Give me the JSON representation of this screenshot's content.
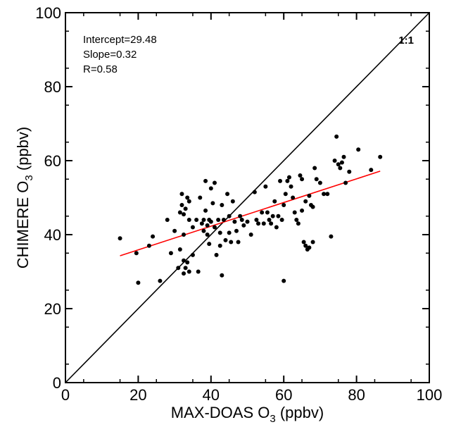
{
  "chart_data": {
    "type": "scatter",
    "xlabel": {
      "main": "MAX-DOAS O",
      "sub": "3",
      "unit": " (ppbv)"
    },
    "ylabel": {
      "main": "CHIMERE O",
      "sub": "3",
      "unit": " (ppbv)"
    },
    "xlim": [
      0,
      100
    ],
    "ylim": [
      0,
      100
    ],
    "xticks": [
      "0",
      "20",
      "40",
      "60",
      "80",
      "100"
    ],
    "yticks": [
      "0",
      "20",
      "40",
      "60",
      "80",
      "100"
    ],
    "grid": false,
    "stats": {
      "intercept": "Intercept=29.48",
      "slope": "Slope=0.32",
      "r": "R=0.58"
    },
    "reference_line": {
      "label": "1:1",
      "x": [
        0,
        100
      ],
      "y": [
        0,
        100
      ],
      "color": "#000000"
    },
    "fit_line": {
      "intercept": 29.48,
      "slope": 0.32,
      "x_range": [
        15,
        86.5
      ],
      "color": "#ff0000"
    },
    "point_color": "#000000",
    "points": [
      [
        15,
        39
      ],
      [
        19.5,
        35
      ],
      [
        20,
        27
      ],
      [
        23,
        37
      ],
      [
        24,
        39.5
      ],
      [
        26,
        27.5
      ],
      [
        28,
        44
      ],
      [
        29,
        35
      ],
      [
        30,
        41
      ],
      [
        31,
        31
      ],
      [
        31.5,
        46
      ],
      [
        31.5,
        36
      ],
      [
        32,
        51
      ],
      [
        32,
        48
      ],
      [
        32.5,
        45.5
      ],
      [
        32.5,
        40
      ],
      [
        32.5,
        33
      ],
      [
        32.5,
        29.5
      ],
      [
        33,
        47
      ],
      [
        33,
        31
      ],
      [
        33.5,
        50
      ],
      [
        33.5,
        32.5
      ],
      [
        34,
        49
      ],
      [
        34,
        44
      ],
      [
        34,
        30
      ],
      [
        35,
        42
      ],
      [
        35,
        34.5
      ],
      [
        36,
        44
      ],
      [
        36.5,
        30
      ],
      [
        37,
        50
      ],
      [
        37.5,
        43
      ],
      [
        38,
        44
      ],
      [
        38,
        41
      ],
      [
        38.5,
        54.5
      ],
      [
        38.5,
        46.5
      ],
      [
        39,
        42.5
      ],
      [
        39,
        40
      ],
      [
        39.5,
        44
      ],
      [
        39.5,
        37.5
      ],
      [
        40,
        52.5
      ],
      [
        40,
        43.5
      ],
      [
        40.5,
        48.5
      ],
      [
        41,
        54
      ],
      [
        41,
        42
      ],
      [
        41.5,
        34.5
      ],
      [
        42,
        44
      ],
      [
        42.5,
        40.5
      ],
      [
        42.5,
        37
      ],
      [
        43,
        48
      ],
      [
        43,
        29
      ],
      [
        43.5,
        44
      ],
      [
        44,
        38.5
      ],
      [
        44.5,
        51
      ],
      [
        45,
        45
      ],
      [
        45,
        40.5
      ],
      [
        45.5,
        38
      ],
      [
        46,
        49
      ],
      [
        46.5,
        43.5
      ],
      [
        47,
        41
      ],
      [
        47.5,
        38
      ],
      [
        48,
        45
      ],
      [
        48.5,
        44
      ],
      [
        49,
        42.5
      ],
      [
        50,
        43.5
      ],
      [
        51,
        40
      ],
      [
        52,
        51.5
      ],
      [
        52.5,
        44
      ],
      [
        53,
        43
      ],
      [
        54,
        46
      ],
      [
        54.5,
        43
      ],
      [
        55,
        53
      ],
      [
        55.5,
        46
      ],
      [
        56,
        44
      ],
      [
        56.5,
        43
      ],
      [
        57,
        45
      ],
      [
        57.5,
        49
      ],
      [
        58,
        42
      ],
      [
        58.5,
        45
      ],
      [
        59,
        54.5
      ],
      [
        59.5,
        44
      ],
      [
        60,
        48
      ],
      [
        60,
        27.5
      ],
      [
        60.5,
        51
      ],
      [
        61,
        54.5
      ],
      [
        61.5,
        55.5
      ],
      [
        62,
        53
      ],
      [
        62.5,
        50
      ],
      [
        63,
        46
      ],
      [
        63.5,
        44
      ],
      [
        64,
        43
      ],
      [
        64.5,
        56
      ],
      [
        65,
        55
      ],
      [
        65,
        46.5
      ],
      [
        65.5,
        38
      ],
      [
        66,
        49
      ],
      [
        66,
        37
      ],
      [
        66.5,
        36
      ],
      [
        67,
        50.5
      ],
      [
        67,
        36.5
      ],
      [
        67.5,
        48
      ],
      [
        68,
        47.5
      ],
      [
        68,
        38
      ],
      [
        68.5,
        58
      ],
      [
        69,
        55
      ],
      [
        70,
        54
      ],
      [
        71,
        51
      ],
      [
        72,
        51
      ],
      [
        73,
        39.5
      ],
      [
        74,
        60
      ],
      [
        74.5,
        66.5
      ],
      [
        75,
        59
      ],
      [
        75.5,
        58
      ],
      [
        76,
        59.5
      ],
      [
        76.5,
        61
      ],
      [
        77,
        54
      ],
      [
        78,
        57
      ],
      [
        80.5,
        63
      ],
      [
        84,
        57.5
      ],
      [
        86.5,
        61
      ]
    ]
  }
}
